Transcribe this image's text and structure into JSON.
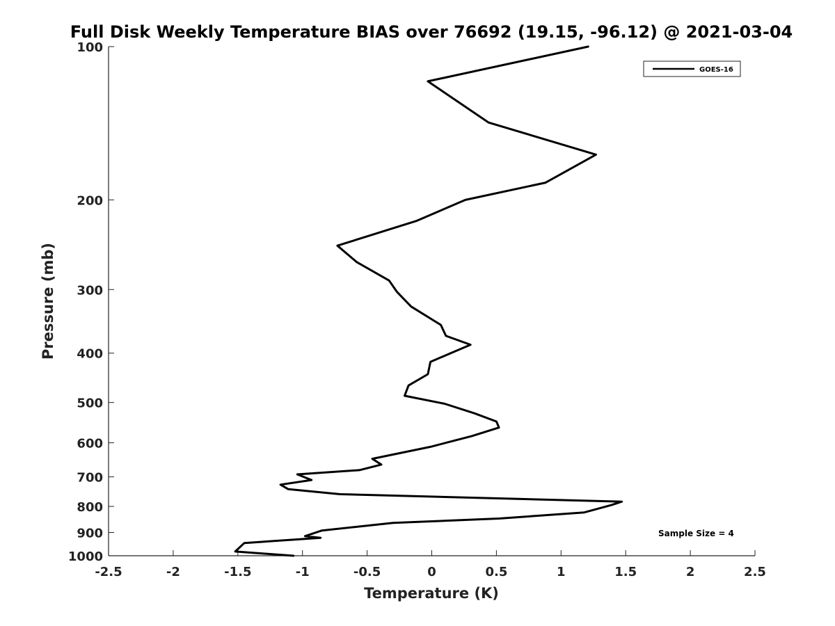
{
  "chart_data": {
    "type": "line",
    "title": "Full Disk Weekly Temperature BIAS over 76692 (19.15, -96.12) @ 2021-03-04",
    "xlabel": "Temperature (K)",
    "ylabel": "Pressure (mb)",
    "xlim": [
      -2.5,
      2.5
    ],
    "ylim": [
      1000,
      100
    ],
    "yscale": "log",
    "y_reversed": true,
    "x_ticks": [
      -2.5,
      -2,
      -1.5,
      -1,
      -0.5,
      0,
      0.5,
      1,
      1.5,
      2,
      2.5
    ],
    "x_tick_labels": [
      "-2.5",
      "-2",
      "-1.5",
      "-1",
      "-0.5",
      "0",
      "0.5",
      "1",
      "1.5",
      "2",
      "2.5"
    ],
    "y_ticks": [
      100,
      200,
      300,
      400,
      500,
      600,
      700,
      800,
      900,
      1000
    ],
    "y_tick_labels": [
      "100",
      "200",
      "300",
      "400",
      "500",
      "600",
      "700",
      "800",
      "900",
      "1000"
    ],
    "grid": false,
    "legend": {
      "placement": "top-right",
      "entries": [
        "GOES-16"
      ]
    },
    "annotation": "Sample Size = 4",
    "line_color": "#000000",
    "series": [
      {
        "name": "GOES-16",
        "x": [
          1.21,
          -0.03,
          0.44,
          1.27,
          0.88,
          0.26,
          -0.12,
          -0.73,
          -0.58,
          -0.33,
          -0.27,
          -0.16,
          0.07,
          0.11,
          0.3,
          -0.01,
          -0.03,
          -0.18,
          -0.21,
          0.1,
          0.33,
          0.5,
          0.52,
          0.31,
          -0.01,
          -0.46,
          -0.39,
          -0.56,
          -1.04,
          -0.93,
          -1.17,
          -1.11,
          -0.71,
          1.47,
          1.39,
          1.18,
          0.52,
          -0.3,
          -0.85,
          -0.98,
          -0.86,
          -1.45,
          -1.52,
          -1.07
        ],
        "y": [
          100,
          117,
          141,
          163,
          185,
          200,
          220,
          246,
          265,
          288,
          303,
          324,
          352,
          370,
          385,
          416,
          440,
          463,
          485,
          503,
          525,
          545,
          560,
          582,
          611,
          645,
          662,
          679,
          692,
          710,
          725,
          740,
          757,
          783,
          795,
          822,
          845,
          862,
          892,
          915,
          922,
          944,
          981,
          1000
        ]
      }
    ]
  }
}
